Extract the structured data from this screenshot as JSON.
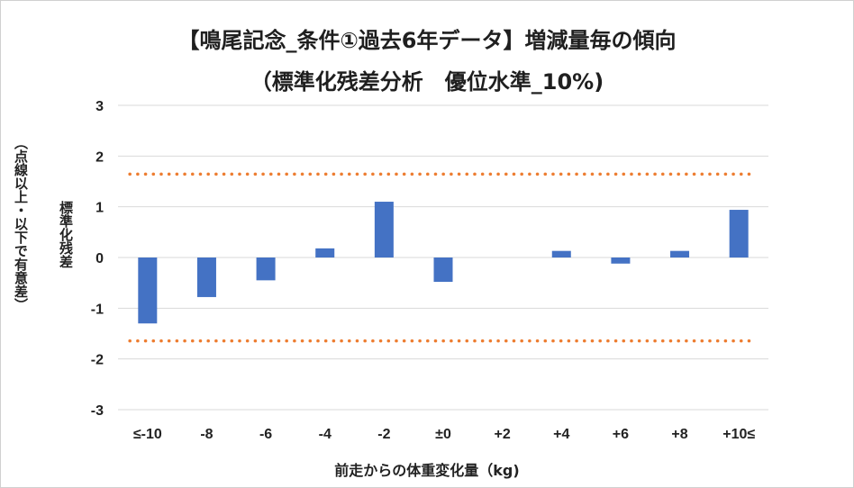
{
  "chart_data": {
    "type": "bar",
    "title_line1": "【鳴尾記念_条件①過去6年データ】増減量毎の傾向",
    "title_line2": "（標準化残差分析　優位水準_10%)",
    "xlabel": "前走からの体重変化量（kg)",
    "ylabel": "標準化残差",
    "ylabel_note": "（点線以上・以下で有意差）",
    "categories": [
      "≤-10",
      "-8",
      "-6",
      "-4",
      "-2",
      "±0",
      "+2",
      "+4",
      "+6",
      "+8",
      "+10≤"
    ],
    "values": [
      -1.3,
      -0.78,
      -0.45,
      0.18,
      1.1,
      -0.48,
      0.0,
      0.13,
      -0.12,
      0.13,
      0.94
    ],
    "ylim": [
      -3,
      3
    ],
    "yticks": [
      3,
      2,
      1,
      0,
      -1,
      -2,
      -3
    ],
    "thresholds": [
      1.645,
      -1.645
    ],
    "grid": true,
    "colors": {
      "bar": "#4472c4",
      "threshold": "#ed7d31",
      "grid": "#d9d9d9"
    }
  }
}
